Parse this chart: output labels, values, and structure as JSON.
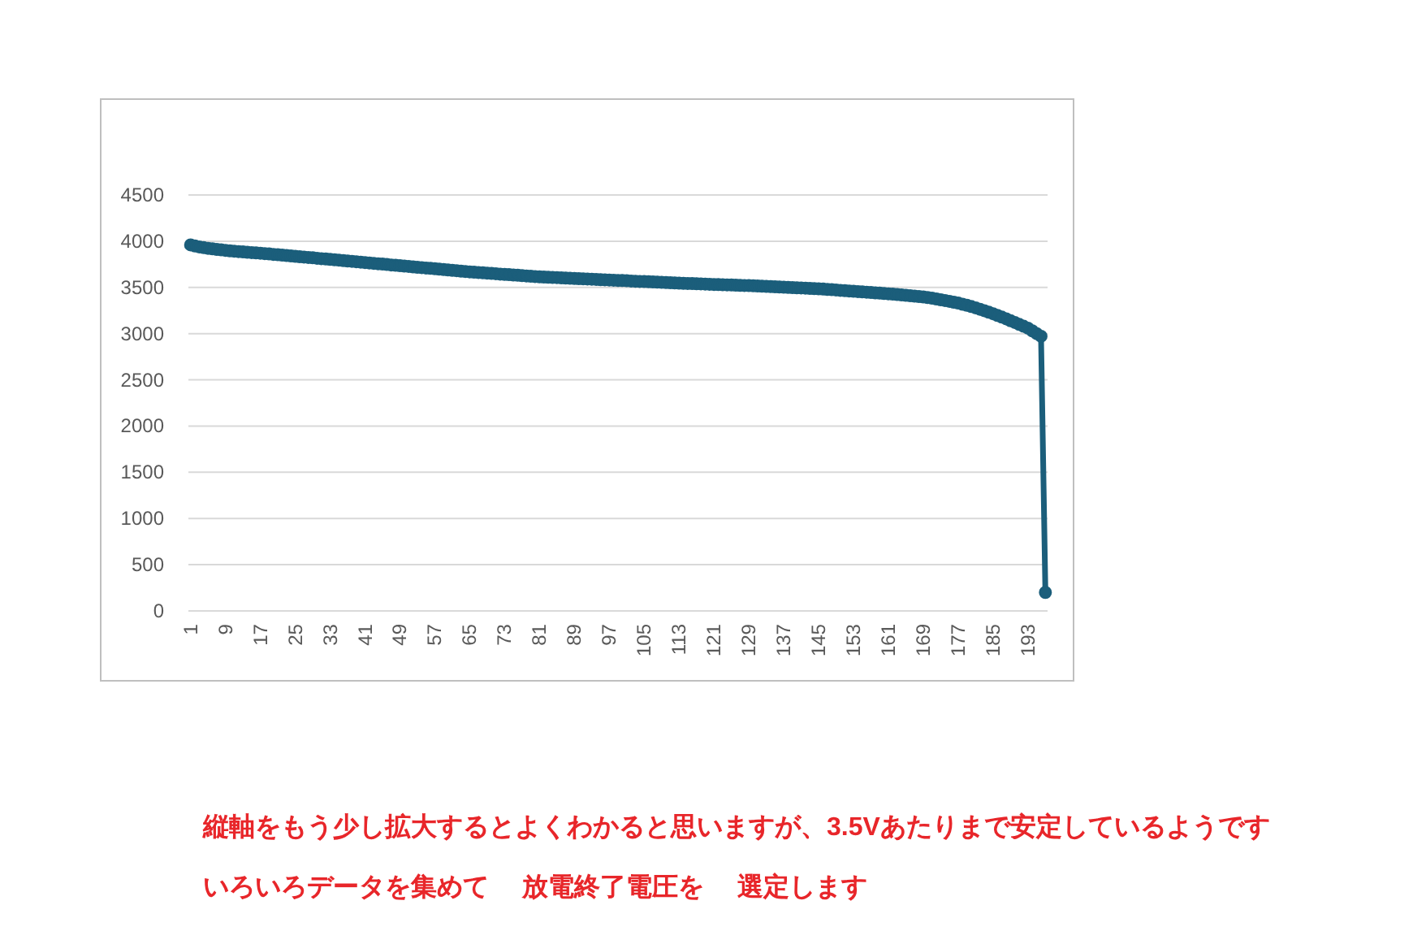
{
  "chart_data": {
    "type": "line",
    "color": "#1b5e7b",
    "marker": "circle",
    "grid": "y",
    "ylim": [
      0,
      4500
    ],
    "yticks": [
      0,
      500,
      1000,
      1500,
      2000,
      2500,
      3000,
      3500,
      4000,
      4500
    ],
    "categories": [
      "1",
      null,
      null,
      null,
      null,
      null,
      null,
      null,
      "9",
      null,
      null,
      null,
      null,
      null,
      null,
      null,
      "17",
      null,
      null,
      null,
      null,
      null,
      null,
      null,
      "25",
      null,
      null,
      null,
      null,
      null,
      null,
      null,
      "33",
      null,
      null,
      null,
      null,
      null,
      null,
      null,
      "41",
      null,
      null,
      null,
      null,
      null,
      null,
      null,
      "49",
      null,
      null,
      null,
      null,
      null,
      null,
      null,
      "57",
      null,
      null,
      null,
      null,
      null,
      null,
      null,
      "65",
      null,
      null,
      null,
      null,
      null,
      null,
      null,
      "73",
      null,
      null,
      null,
      null,
      null,
      null,
      null,
      "81",
      null,
      null,
      null,
      null,
      null,
      null,
      null,
      "89",
      null,
      null,
      null,
      null,
      null,
      null,
      null,
      "97",
      null,
      null,
      null,
      null,
      null,
      null,
      null,
      "105",
      null,
      null,
      null,
      null,
      null,
      null,
      null,
      "113",
      null,
      null,
      null,
      null,
      null,
      null,
      null,
      "121",
      null,
      null,
      null,
      null,
      null,
      null,
      null,
      "129",
      null,
      null,
      null,
      null,
      null,
      null,
      null,
      "137",
      null,
      null,
      null,
      null,
      null,
      null,
      null,
      "145",
      null,
      null,
      null,
      null,
      null,
      null,
      null,
      "153",
      null,
      null,
      null,
      null,
      null,
      null,
      null,
      "161",
      null,
      null,
      null,
      null,
      null,
      null,
      null,
      "169",
      null,
      null,
      null,
      null,
      null,
      null,
      null,
      "177",
      null,
      null,
      null,
      null,
      null,
      null,
      null,
      "185",
      null,
      null,
      null,
      null,
      null,
      null,
      null,
      "193",
      null,
      null,
      null,
      null
    ],
    "values": [
      3960,
      3948,
      3938,
      3930,
      3923,
      3917,
      3911,
      3906,
      3901,
      3896,
      3892,
      3888,
      3884,
      3880,
      3877,
      3874,
      3870,
      3866,
      3862,
      3857,
      3853,
      3849,
      3845,
      3841,
      3836,
      3832,
      3828,
      3824,
      3820,
      3815,
      3811,
      3807,
      3803,
      3799,
      3795,
      3790,
      3786,
      3782,
      3778,
      3773,
      3769,
      3765,
      3760,
      3756,
      3752,
      3748,
      3743,
      3739,
      3735,
      3731,
      3727,
      3722,
      3718,
      3714,
      3710,
      3706,
      3702,
      3697,
      3693,
      3689,
      3685,
      3681,
      3676,
      3672,
      3668,
      3665,
      3661,
      3658,
      3655,
      3651,
      3648,
      3644,
      3641,
      3638,
      3634,
      3631,
      3627,
      3624,
      3621,
      3617,
      3614,
      3612,
      3610,
      3608,
      3606,
      3603,
      3601,
      3599,
      3597,
      3595,
      3593,
      3591,
      3589,
      3587,
      3584,
      3582,
      3580,
      3578,
      3576,
      3574,
      3572,
      3569,
      3567,
      3565,
      3563,
      3561,
      3559,
      3557,
      3555,
      3553,
      3550,
      3548,
      3546,
      3544,
      3543,
      3541,
      3539,
      3538,
      3536,
      3534,
      3532,
      3531,
      3529,
      3527,
      3526,
      3524,
      3522,
      3521,
      3519,
      3517,
      3515,
      3513,
      3511,
      3509,
      3506,
      3504,
      3502,
      3500,
      3498,
      3496,
      3494,
      3492,
      3489,
      3487,
      3485,
      3482,
      3478,
      3475,
      3472,
      3468,
      3465,
      3461,
      3458,
      3455,
      3451,
      3448,
      3445,
      3441,
      3438,
      3434,
      3431,
      3427,
      3423,
      3418,
      3414,
      3410,
      3405,
      3401,
      3397,
      3390,
      3383,
      3375,
      3366,
      3358,
      3349,
      3340,
      3330,
      3318,
      3306,
      3293,
      3279,
      3264,
      3248,
      3232,
      3215,
      3197,
      3179,
      3160,
      3140,
      3121,
      3100,
      3080,
      3059,
      3030,
      3000,
      2971,
      200
    ],
    "annotations": [
      "縦軸をもう少し拡大するとよくわかると思いますが、3.5Vあたりまで安定しているようです",
      "いろいろデータを集めて　 放電終了電圧を　 選定します"
    ]
  }
}
